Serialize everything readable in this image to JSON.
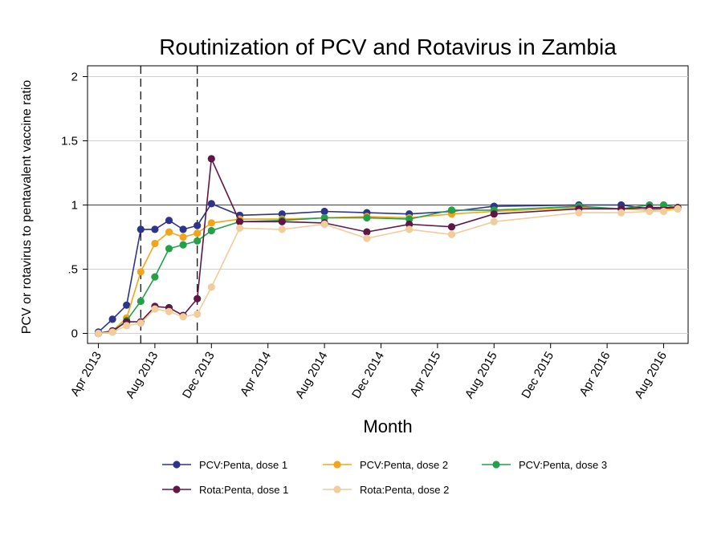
{
  "chart_data": {
    "type": "line",
    "title": "Routinization of PCV and Rotavirus in Zambia",
    "xlabel": "Month",
    "ylabel": "PCV or rotavirus to pentavalent vaccine ratio",
    "x_ticks": [
      "Apr 2013",
      "Aug 2013",
      "Dec 2013",
      "Apr 2014",
      "Aug 2014",
      "Dec 2014",
      "Apr 2015",
      "Aug 2015",
      "Dec 2015",
      "Apr 2016",
      "Aug 2016"
    ],
    "x_range": [
      "2013-03",
      "2016-10"
    ],
    "y_ticks": [
      "0",
      ".5",
      "1",
      "1.5",
      "2"
    ],
    "ylim": [
      -0.07,
      2.1
    ],
    "reference_lines": {
      "horizontal_y": 1,
      "vertical_dashed_x": [
        "2013-07",
        "2013-11"
      ]
    },
    "grid": true,
    "legend_position": "bottom",
    "series": [
      {
        "name": "PCV:Penta, dose 1",
        "color": "#2d3589",
        "points": [
          [
            "2013-04",
            0.01
          ],
          [
            "2013-05",
            0.11
          ],
          [
            "2013-06",
            0.22
          ],
          [
            "2013-07",
            0.81
          ],
          [
            "2013-08",
            0.81
          ],
          [
            "2013-09",
            0.88
          ],
          [
            "2013-10",
            0.81
          ],
          [
            "2013-11",
            0.84
          ],
          [
            "2013-12",
            1.01
          ],
          [
            "2014-02",
            0.92
          ],
          [
            "2014-05",
            0.93
          ],
          [
            "2014-08",
            0.95
          ],
          [
            "2014-11",
            0.94
          ],
          [
            "2015-02",
            0.93
          ],
          [
            "2015-05",
            0.95
          ],
          [
            "2015-08",
            0.99
          ],
          [
            "2016-02",
            1.0
          ],
          [
            "2016-05",
            1.0
          ],
          [
            "2016-07",
            0.97
          ],
          [
            "2016-09",
            0.98
          ]
        ]
      },
      {
        "name": "PCV:Penta, dose 2",
        "color": "#f2a51a",
        "points": [
          [
            "2013-04",
            0.0
          ],
          [
            "2013-05",
            0.02
          ],
          [
            "2013-06",
            0.12
          ],
          [
            "2013-07",
            0.48
          ],
          [
            "2013-08",
            0.7
          ],
          [
            "2013-09",
            0.79
          ],
          [
            "2013-10",
            0.75
          ],
          [
            "2013-11",
            0.78
          ],
          [
            "2013-12",
            0.86
          ],
          [
            "2014-02",
            0.89
          ],
          [
            "2014-05",
            0.89
          ],
          [
            "2014-08",
            0.9
          ],
          [
            "2014-11",
            0.91
          ],
          [
            "2015-02",
            0.9
          ],
          [
            "2015-05",
            0.93
          ],
          [
            "2015-08",
            0.95
          ],
          [
            "2016-02",
            0.98
          ],
          [
            "2016-05",
            0.97
          ],
          [
            "2016-07",
            0.96
          ],
          [
            "2016-09",
            0.97
          ]
        ]
      },
      {
        "name": "PCV:Penta, dose 3",
        "color": "#24a04a",
        "points": [
          [
            "2013-04",
            0.0
          ],
          [
            "2013-05",
            0.01
          ],
          [
            "2013-06",
            0.1
          ],
          [
            "2013-07",
            0.25
          ],
          [
            "2013-08",
            0.44
          ],
          [
            "2013-09",
            0.66
          ],
          [
            "2013-10",
            0.69
          ],
          [
            "2013-11",
            0.72
          ],
          [
            "2013-12",
            0.8
          ],
          [
            "2014-02",
            0.87
          ],
          [
            "2014-05",
            0.88
          ],
          [
            "2014-08",
            0.9
          ],
          [
            "2014-11",
            0.9
          ],
          [
            "2015-02",
            0.89
          ],
          [
            "2015-05",
            0.96
          ],
          [
            "2015-08",
            0.96
          ],
          [
            "2016-02",
            0.99
          ],
          [
            "2016-05",
            0.97
          ],
          [
            "2016-07",
            1.0
          ],
          [
            "2016-08",
            1.0
          ],
          [
            "2016-09",
            0.98
          ]
        ]
      },
      {
        "name": "Rota:Penta, dose 1",
        "color": "#5e1845",
        "points": [
          [
            "2013-04",
            0.0
          ],
          [
            "2013-05",
            0.02
          ],
          [
            "2013-06",
            0.09
          ],
          [
            "2013-07",
            0.09
          ],
          [
            "2013-08",
            0.21
          ],
          [
            "2013-09",
            0.2
          ],
          [
            "2013-10",
            0.14
          ],
          [
            "2013-11",
            0.27
          ],
          [
            "2013-12",
            1.36
          ],
          [
            "2014-02",
            0.87
          ],
          [
            "2014-05",
            0.87
          ],
          [
            "2014-08",
            0.86
          ],
          [
            "2014-11",
            0.79
          ],
          [
            "2015-02",
            0.85
          ],
          [
            "2015-05",
            0.83
          ],
          [
            "2015-08",
            0.93
          ],
          [
            "2016-02",
            0.97
          ],
          [
            "2016-05",
            0.97
          ],
          [
            "2016-07",
            0.98
          ],
          [
            "2016-09",
            0.98
          ]
        ]
      },
      {
        "name": "Rota:Penta, dose 2",
        "color": "#f1cc9c",
        "points": [
          [
            "2013-04",
            0.0
          ],
          [
            "2013-05",
            0.01
          ],
          [
            "2013-06",
            0.06
          ],
          [
            "2013-07",
            0.08
          ],
          [
            "2013-08",
            0.19
          ],
          [
            "2013-09",
            0.17
          ],
          [
            "2013-10",
            0.13
          ],
          [
            "2013-11",
            0.15
          ],
          [
            "2013-12",
            0.36
          ],
          [
            "2014-02",
            0.82
          ],
          [
            "2014-05",
            0.81
          ],
          [
            "2014-08",
            0.85
          ],
          [
            "2014-11",
            0.74
          ],
          [
            "2015-02",
            0.81
          ],
          [
            "2015-05",
            0.77
          ],
          [
            "2015-08",
            0.87
          ],
          [
            "2016-02",
            0.94
          ],
          [
            "2016-05",
            0.94
          ],
          [
            "2016-07",
            0.95
          ],
          [
            "2016-08",
            0.95
          ],
          [
            "2016-09",
            0.97
          ]
        ]
      }
    ]
  }
}
